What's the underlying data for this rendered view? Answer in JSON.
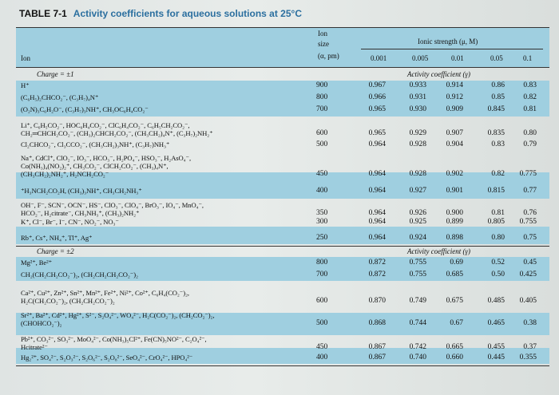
{
  "table": {
    "number": "TABLE 7-1",
    "title": "Activity coefficients for aqueous solutions at 25°C",
    "headers": {
      "ion": "Ion",
      "ion_size_1": "Ion",
      "ion_size_2": "size",
      "ion_size_3": "(α, pm)",
      "ionic_strength": "Ionic strength (μ, M)",
      "mu": [
        "0.001",
        "0.005",
        "0.01",
        "0.05",
        "0.1"
      ]
    },
    "sections": [
      {
        "charge": "Charge = ±1",
        "activity_label": "Activity coefficient (γ)",
        "rows": [
          {
            "ions": [
              "H⁺"
            ],
            "size": "900",
            "g": [
              "0.967",
              "0.933",
              "0.914",
              "0.86",
              "0.83"
            ]
          },
          {
            "ions": [
              "(C₆H₅)₂CHCO₂⁻, (C₃H₇)₄N⁺"
            ],
            "size": "800",
            "g": [
              "0.966",
              "0.931",
              "0.912",
              "0.85",
              "0.82"
            ]
          },
          {
            "ions": [
              "(O₂N)₃C₆H₂O⁻, (C₃H₇)₃NH⁺, CH₃OC₆H₄CO₂⁻"
            ],
            "size": "700",
            "g": [
              "0.965",
              "0.930",
              "0.909",
              "0.845",
              "0.81"
            ]
          },
          {
            "ions": [
              "Li⁺, C₆H₅CO₂⁻, HOC₆H₄CO₂⁻, ClC₆H₄CO₂⁻, C₆H₅CH₂CO₂⁻,",
              "CH₂═CHCH₂CO₂⁻, (CH₃)₂CHCH₂CO₂⁻, (CH₃CH₂)₄N⁺, (C₃H₇)₂NH₂⁺"
            ],
            "size": "600",
            "g": [
              "0.965",
              "0.929",
              "0.907",
              "0.835",
              "0.80"
            ]
          },
          {
            "ions": [
              "Cl₂CHCO₂⁻, Cl₃CCO₂⁻, (CH₃CH₂)₃NH⁺, (C₃H₇)NH₃⁺"
            ],
            "size": "500",
            "g": [
              "0.964",
              "0.928",
              "0.904",
              "0.83",
              "0.79"
            ]
          },
          {
            "ions": [
              "Na⁺, CdCl⁺, ClO₂⁻, IO₃⁻, HCO₃⁻, H₂PO₄⁻, HSO₃⁻, H₂AsO₄⁻,",
              "Co(NH₃)₄(NO₂)₂⁺, CH₃CO₂⁻, ClCH₂CO₂⁻, (CH₃)₄N⁺,",
              "(CH₃CH₂)₂NH₂⁺, H₂NCH₂CO₂⁻"
            ],
            "size": "450",
            "g": [
              "0.964",
              "0.928",
              "0.902",
              "0.82",
              "0.775"
            ]
          },
          {
            "ions": [
              "⁺H₃NCH₂CO₂H, (CH₃)₃NH⁺, CH₃CH₂NH₃⁺"
            ],
            "size": "400",
            "g": [
              "0.964",
              "0.927",
              "0.901",
              "0.815",
              "0.77"
            ]
          },
          {
            "ions": [
              "OH⁻, F⁻, SCN⁻, OCN⁻, HS⁻, ClO₃⁻, ClO₄⁻, BrO₃⁻, IO₄⁻, MnO₄⁻,",
              "HCO₂⁻, H₂citrate⁻, CH₃NH₃⁺, (CH₃)₂NH₂⁺"
            ],
            "size": "350",
            "g": [
              "0.964",
              "0.926",
              "0.900",
              "0.81",
              "0.76"
            ]
          },
          {
            "ions": [
              "K⁺, Cl⁻, Br⁻, I⁻, CN⁻, NO₂⁻, NO₃⁻"
            ],
            "size": "300",
            "g": [
              "0.964",
              "0.925",
              "0.899",
              "0.805",
              "0.755"
            ]
          },
          {
            "ions": [
              "Rb⁺, Cs⁺, NH₄⁺, Tl⁺, Ag⁺"
            ],
            "size": "250",
            "g": [
              "0.964",
              "0.924",
              "0.898",
              "0.80",
              "0.75"
            ]
          }
        ]
      },
      {
        "charge": "Charge = ±2",
        "activity_label": "Activity coefficient (γ)",
        "rows": [
          {
            "ions": [
              "Mg²⁺, Be²⁺"
            ],
            "size": "800",
            "g": [
              "0.872",
              "0.755",
              "0.69",
              "0.52",
              "0.45"
            ]
          },
          {
            "ions": [
              "CH₂(CH₂CH₂CO₂⁻)₂, (CH₂CH₂CH₂CO₂⁻)₂"
            ],
            "size": "700",
            "g": [
              "0.872",
              "0.755",
              "0.685",
              "0.50",
              "0.425"
            ]
          },
          {
            "ions": [
              "Ca²⁺, Cu²⁺, Zn²⁺, Sn²⁺, Mn²⁺, Fe²⁺, Ni²⁺, Co²⁺, C₆H₄(CO₂⁻)₂,",
              "H₂C(CH₂CO₂⁻)₂, (CH₂CH₂CO₂⁻)₂"
            ],
            "size": "600",
            "g": [
              "0.870",
              "0.749",
              "0.675",
              "0.485",
              "0.405"
            ]
          },
          {
            "ions": [
              "Sr²⁺, Ba²⁺, Cd²⁺, Hg²⁺, S²⁻, S₂O₄²⁻, WO₄²⁻, H₂C(CO₂⁻)₂, (CH₂CO₂⁻)₂,",
              "(CHOHCO₂⁻)₂"
            ],
            "size": "500",
            "g": [
              "0.868",
              "0.744",
              "0.67",
              "0.465",
              "0.38"
            ]
          },
          {
            "ions": [
              "Pb²⁺, CO₃²⁻, SO₃²⁻, MoO₄²⁻, Co(NH₃)₅Cl²⁺, Fe(CN)₅NO²⁻, C₂O₄²⁻,",
              "Hcitrate²⁻"
            ],
            "size": "450",
            "g": [
              "0.867",
              "0.742",
              "0.665",
              "0.455",
              "0.37"
            ]
          },
          {
            "ions": [
              "Hg₂²⁺, SO₄²⁻, S₂O₃²⁻, S₂O₆²⁻, S₂O₈²⁻, SeO₄²⁻, CrO₄²⁻, HPO₄²⁻"
            ],
            "size": "400",
            "g": [
              "0.867",
              "0.740",
              "0.660",
              "0.445",
              "0.355"
            ]
          }
        ]
      }
    ]
  }
}
